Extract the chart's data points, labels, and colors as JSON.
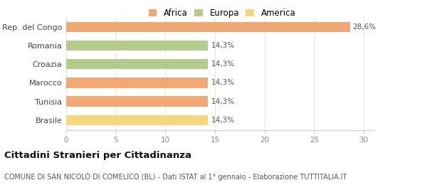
{
  "categories": [
    "Brasile",
    "Tunisia",
    "Marocco",
    "Croazia",
    "Romania",
    "Rep. del Congo"
  ],
  "values": [
    14.3,
    14.3,
    14.3,
    14.3,
    14.3,
    28.6
  ],
  "bar_colors": [
    "#f5d87e",
    "#f0a875",
    "#f0a875",
    "#b5cb8b",
    "#b5cb8b",
    "#f0a875"
  ],
  "continent_colors": {
    "Africa": "#f0a875",
    "Europa": "#b5cb8b",
    "America": "#f5d87e"
  },
  "legend_labels": [
    "Africa",
    "Europa",
    "America"
  ],
  "bar_labels": [
    "14,3%",
    "14,3%",
    "14,3%",
    "14,3%",
    "14,3%",
    "28,6%"
  ],
  "xlim": [
    0,
    31
  ],
  "xticks": [
    0,
    5,
    10,
    15,
    20,
    25,
    30
  ],
  "title_bold": "Cittadini Stranieri per Cittadinanza",
  "subtitle": "COMUNE DI SAN NICOLÒ DI COMELICO (BL) - Dati ISTAT al 1° gennaio - Elaborazione TUTTITALIA.IT",
  "background_color": "#ffffff",
  "bar_height": 0.55,
  "label_fontsize": 7.5,
  "tick_fontsize": 7.5,
  "y_tick_fontsize": 8,
  "title_fontsize": 9.5,
  "subtitle_fontsize": 7.0,
  "legend_fontsize": 8.5
}
